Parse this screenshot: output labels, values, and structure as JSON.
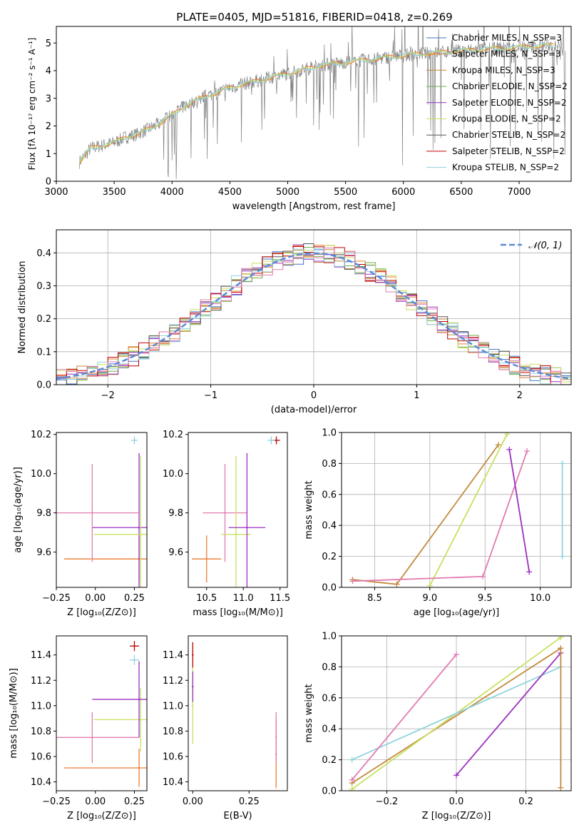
{
  "figure_title": "PLATE=0405, MJD=51816, FIBERID=0418, z=0.269",
  "colors": {
    "Chabrier MILES": "#4472c4",
    "Salpeter MILES": "#ed7d31",
    "Kroupa MILES": "#c28a3b",
    "Chabrier ELODIE": "#70ad47",
    "Salpeter ELODIE": "#9b30c0",
    "Kroupa ELODIE": "#c8e060",
    "Chabrier STELIB": "#555555",
    "Salpeter STELIB": "#c00000",
    "Kroupa STELIB": "#8fd3dc",
    "gauss": "#5b8bd6",
    "pink": "#e27bb0"
  },
  "chart_data": [
    {
      "id": "spectrum",
      "type": "line",
      "title": "PLATE=0405, MJD=51816, FIBERID=0418, z=0.269",
      "xlabel": "wavelength [Angstrom, rest frame]",
      "ylabel": "Flux [fλ 10⁻¹⁷ erg cm⁻² s⁻¹ A⁻¹]",
      "xlim": [
        3000,
        7450
      ],
      "ylim": [
        0,
        5.6
      ],
      "xticks": [
        3000,
        3500,
        4000,
        4500,
        5000,
        5500,
        6000,
        6500,
        7000
      ],
      "yticks": [
        0,
        1,
        2,
        3,
        4,
        5
      ],
      "grid": false,
      "legend_position": "top-right",
      "legend": [
        "Chabrier MILES, N_SSP=3",
        "Salpeter MILES, N_SSP=3",
        "Kroupa MILES, N_SSP=3",
        "Chabrier ELODIE, N_SSP=2",
        "Salpeter ELODIE, N_SSP=2",
        "Kroupa ELODIE, N_SSP=2",
        "Chabrier STELIB, N_SSP=2",
        "Salpeter STELIB, N_SSP=2",
        "Kroupa STELIB, N_SSP=2"
      ],
      "continuum": {
        "x": [
          3200,
          3300,
          3400,
          3500,
          3600,
          3700,
          3800,
          3900,
          4000,
          4100,
          4200,
          4300,
          4400,
          4500,
          4600,
          4700,
          4800,
          4900,
          5000,
          5100,
          5200,
          5300,
          5400,
          5500,
          5600,
          5700,
          5800,
          5900,
          6000,
          6100,
          6200,
          6300,
          6400,
          6500,
          6600,
          6700,
          6800,
          6900,
          7000,
          7100,
          7200,
          7300
        ],
        "y": [
          0.7,
          1.2,
          1.3,
          1.4,
          1.6,
          1.7,
          1.9,
          2.1,
          2.4,
          2.7,
          2.9,
          3.1,
          3.2,
          3.4,
          3.5,
          3.6,
          3.7,
          3.8,
          3.9,
          4.0,
          4.1,
          4.2,
          4.25,
          4.3,
          4.35,
          4.4,
          4.45,
          4.5,
          4.55,
          4.6,
          4.62,
          4.65,
          4.7,
          4.72,
          4.75,
          4.78,
          4.8,
          4.82,
          4.85,
          4.88,
          4.9,
          4.92
        ]
      }
    },
    {
      "id": "residuals",
      "type": "line",
      "xlabel": "(data-model)/error",
      "ylabel": "Normed distribution",
      "xlim": [
        -2.5,
        2.5
      ],
      "ylim": [
        0,
        0.47
      ],
      "xticks": [
        -2,
        -1,
        0,
        1,
        2
      ],
      "yticks": [
        0.0,
        0.1,
        0.2,
        0.3,
        0.4
      ],
      "grid": true,
      "legend_position": "top-right",
      "legend": [
        "𝒩(0, 1)"
      ],
      "hist_bin_width": 0.1,
      "hist_bin_start": -2.5
    },
    {
      "id": "age_vs_Z",
      "type": "scatter",
      "xlabel": "Z [log₁₀(Z/Z⊙)]",
      "ylabel": "age [log₁₀(age/yr)]",
      "xlim": [
        -0.25,
        0.33
      ],
      "ylim": [
        9.42,
        10.21
      ],
      "xticks": [
        -0.25,
        0.0,
        0.25
      ],
      "yticks": [
        9.6,
        9.8,
        10.0,
        10.2
      ],
      "points": [
        {
          "series": "Salpeter MILES",
          "x": 0.28,
          "y": 9.565,
          "xerr": 0.48,
          "yerr": 0.12
        },
        {
          "series": "Salpeter ELODIE",
          "x": 0.28,
          "y": 9.725,
          "xerr": 0.3,
          "yerr": 0.38
        },
        {
          "series": "Kroupa ELODIE",
          "x": 0.29,
          "y": 9.69,
          "xerr": 0.3,
          "yerr": 0.4
        },
        {
          "series": "pink",
          "x": -0.02,
          "y": 9.8,
          "xerr": 0.3,
          "yerr": 0.25
        },
        {
          "series": "Kroupa STELIB",
          "x": 0.25,
          "y": 10.17,
          "xerr": 0.02,
          "yerr": 0.02
        }
      ]
    },
    {
      "id": "age_vs_mass",
      "type": "scatter",
      "xlabel": "mass [log₁₀(M/M⊙)]",
      "ylabel": "",
      "xlim": [
        10.25,
        11.6
      ],
      "ylim": [
        9.42,
        10.21
      ],
      "xticks": [
        10.5,
        11.0,
        11.5
      ],
      "yticks": [
        9.6,
        9.8,
        10.0,
        10.2
      ],
      "points": [
        {
          "series": "Salpeter MILES",
          "x": 10.5,
          "y": 9.565,
          "xerr": 0.2,
          "yerr": 0.12
        },
        {
          "series": "pink",
          "x": 10.75,
          "y": 9.8,
          "xerr": 0.3,
          "yerr": 0.25
        },
        {
          "series": "Kroupa ELODIE",
          "x": 10.9,
          "y": 9.69,
          "xerr": 0.2,
          "yerr": 0.4
        },
        {
          "series": "Salpeter ELODIE",
          "x": 11.05,
          "y": 9.725,
          "xerr": 0.25,
          "yerr": 0.38
        },
        {
          "series": "Salpeter STELIB",
          "x": 11.45,
          "y": 10.17,
          "xerr": 0.05,
          "yerr": 0.02
        },
        {
          "series": "Kroupa STELIB",
          "x": 11.38,
          "y": 10.17,
          "xerr": 0.05,
          "yerr": 0.02
        }
      ]
    },
    {
      "id": "weight_vs_age",
      "type": "line",
      "xlabel": "age  [log₁₀(age/yr)]",
      "ylabel": "mass weight",
      "xlim": [
        8.2,
        10.28
      ],
      "ylim": [
        0,
        1.0
      ],
      "xticks": [
        8.5,
        9.0,
        9.5,
        10.0
      ],
      "yticks": [
        0.0,
        0.2,
        0.4,
        0.6,
        0.8,
        1.0
      ],
      "grid": true,
      "series": [
        {
          "color_key": "Kroupa MILES",
          "x": [
            8.3,
            8.7,
            9.62
          ],
          "y": [
            0.05,
            0.02,
            0.92
          ]
        },
        {
          "color_key": "Kroupa ELODIE",
          "x": [
            9.0,
            9.7
          ],
          "y": [
            0.01,
            0.99
          ]
        },
        {
          "color_key": "pink",
          "x": [
            8.3,
            9.48,
            9.88
          ],
          "y": [
            0.04,
            0.07,
            0.88
          ]
        },
        {
          "color_key": "Salpeter ELODIE",
          "x": [
            9.72,
            9.9
          ],
          "y": [
            0.89,
            0.1
          ]
        },
        {
          "color_key": "Kroupa STELIB",
          "x": [
            10.2,
            10.2
          ],
          "y": [
            0.2,
            0.8
          ]
        }
      ]
    },
    {
      "id": "mass_vs_Z",
      "type": "scatter",
      "xlabel": "Z [log₁₀(Z/Z⊙)]",
      "ylabel": "mass [log₁₀(M/M⊙)]",
      "xlim": [
        -0.25,
        0.33
      ],
      "ylim": [
        10.33,
        11.55
      ],
      "xticks": [
        -0.25,
        0.0,
        0.25
      ],
      "yticks": [
        10.4,
        10.6,
        10.8,
        11.0,
        11.2,
        11.4
      ],
      "points": [
        {
          "series": "Salpeter MILES",
          "x": 0.28,
          "y": 10.51,
          "xerr": 0.48,
          "yerr": 0.15
        },
        {
          "series": "pink",
          "x": -0.02,
          "y": 10.75,
          "xerr": 0.3,
          "yerr": 0.2
        },
        {
          "series": "Kroupa ELODIE",
          "x": 0.29,
          "y": 10.89,
          "xerr": 0.3,
          "yerr": 0.25
        },
        {
          "series": "Salpeter ELODIE",
          "x": 0.28,
          "y": 11.05,
          "xerr": 0.3,
          "yerr": 0.3
        },
        {
          "series": "Salpeter STELIB",
          "x": 0.25,
          "y": 11.47,
          "xerr": 0.03,
          "yerr": 0.04
        },
        {
          "series": "Kroupa STELIB",
          "x": 0.25,
          "y": 11.36,
          "xerr": 0.03,
          "yerr": 0.04
        }
      ]
    },
    {
      "id": "mass_vs_ebv",
      "type": "scatter",
      "xlabel": "E(B-V)",
      "ylabel": "",
      "xlim": [
        -0.02,
        0.42
      ],
      "ylim": [
        10.33,
        11.55
      ],
      "xticks": [
        0.0,
        0.25
      ],
      "yticks": [
        10.4,
        10.6,
        10.8,
        11.0,
        11.2,
        11.4
      ],
      "points": [
        {
          "series": "Salpeter STELIB",
          "x": 0.0,
          "y": 11.4,
          "xerr": 0,
          "yerr": 0.1
        },
        {
          "series": "Kroupa ELODIE",
          "x": 0.0,
          "y": 11.0,
          "xerr": 0,
          "yerr": 0.3
        },
        {
          "series": "Salpeter ELODIE",
          "x": 0.0,
          "y": 11.15,
          "xerr": 0,
          "yerr": 0.12
        },
        {
          "series": "Salpeter MILES",
          "x": 0.37,
          "y": 10.62,
          "xerr": 0,
          "yerr": 0.27
        },
        {
          "series": "pink",
          "x": 0.37,
          "y": 10.75,
          "xerr": 0,
          "yerr": 0.2
        }
      ]
    },
    {
      "id": "weight_vs_Z",
      "type": "line",
      "xlabel": "Z [log₁₀(Z/Z⊙)]",
      "ylabel": "mass weight",
      "xlim": [
        -0.33,
        0.33
      ],
      "ylim": [
        0,
        1.0
      ],
      "xticks": [
        -0.2,
        0.0,
        0.2
      ],
      "yticks": [
        0.0,
        0.2,
        0.4,
        0.6,
        0.8,
        1.0
      ],
      "grid": true,
      "series": [
        {
          "color_key": "Kroupa MILES",
          "x": [
            -0.3,
            0.3
          ],
          "y": [
            0.05,
            0.92
          ]
        },
        {
          "color_key": "Kroupa ELODIE",
          "x": [
            -0.3,
            0.3
          ],
          "y": [
            0.01,
            0.99
          ]
        },
        {
          "color_key": "Kroupa STELIB",
          "x": [
            -0.3,
            0.3
          ],
          "y": [
            0.2,
            0.8
          ]
        },
        {
          "color_key": "pink",
          "x": [
            -0.3,
            0.0
          ],
          "y": [
            0.07,
            0.88
          ]
        },
        {
          "color_key": "Salpeter ELODIE",
          "x": [
            0.0,
            0.3
          ],
          "y": [
            0.1,
            0.89
          ]
        },
        {
          "color_key": "Kroupa MILES",
          "x": [
            0.3,
            0.3
          ],
          "y": [
            0.02,
            0.92
          ]
        }
      ]
    }
  ]
}
